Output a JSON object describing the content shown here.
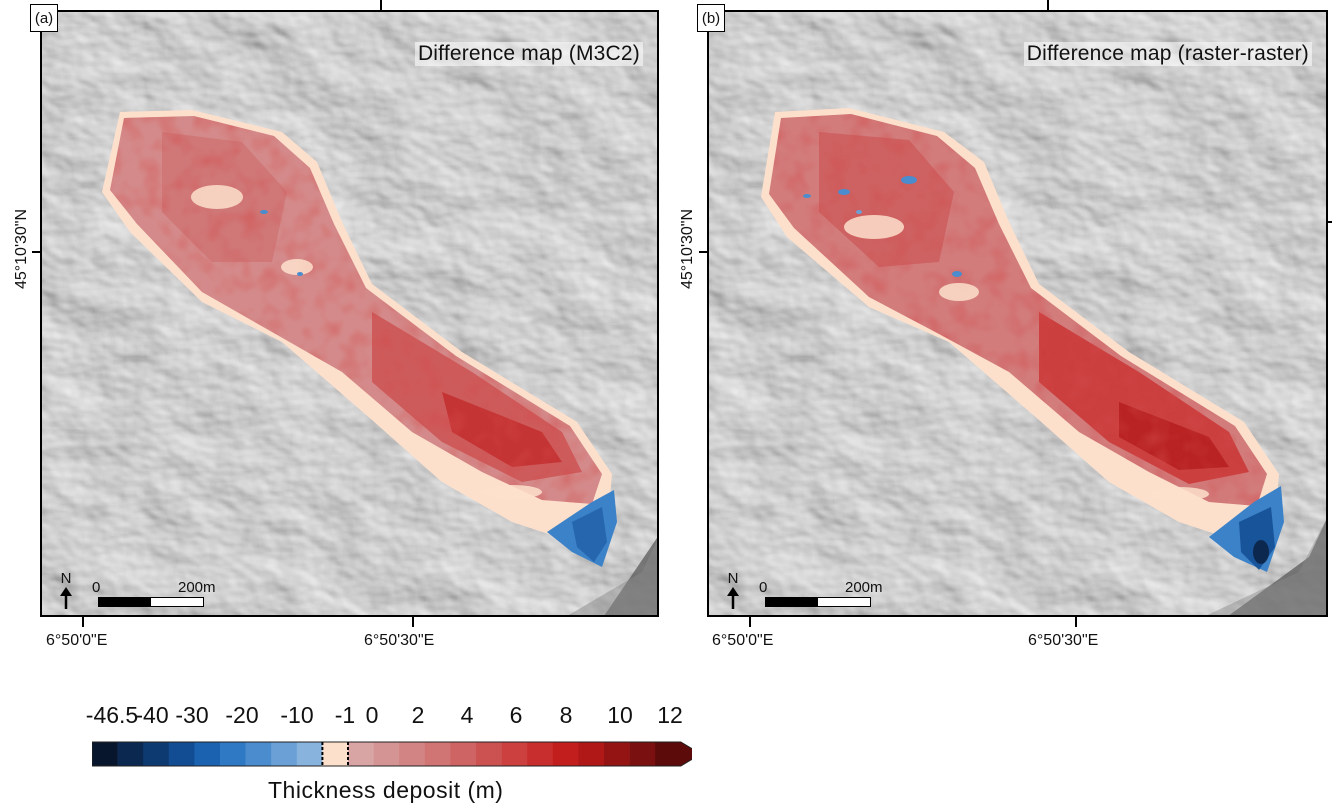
{
  "panels": [
    {
      "letter": "(a)",
      "title": "Difference map (M3C2)",
      "lat_label": "45°10'30\"N",
      "lon_labels": [
        "6°50'0\"E",
        "6°50'30\"E"
      ],
      "north_label": "N",
      "scale_zero": "0",
      "scale_end": "200m"
    },
    {
      "letter": "(b)",
      "title": "Difference map (raster-raster)",
      "lat_label": "45°10'30\"N",
      "lon_labels": [
        "6°50'0\"E",
        "6°50'30\"E"
      ],
      "north_label": "N",
      "scale_zero": "0",
      "scale_end": "200m"
    }
  ],
  "legend": {
    "title": "Thickness deposit (m)",
    "tick_labels": [
      "-46.5",
      "-40",
      "-30",
      "-20",
      "-10",
      "-1",
      "0",
      "2",
      "4",
      "6",
      "8",
      "10",
      "12"
    ],
    "colors": [
      "#08162d",
      "#0b2850",
      "#0e3a72",
      "#124c92",
      "#1b63b0",
      "#2f78c3",
      "#4a8ccd",
      "#6aa0d5",
      "#88b3dc",
      "#fde0cc",
      "#d8a4a4",
      "#d49494",
      "#d28484",
      "#d07474",
      "#ce6464",
      "#cc5252",
      "#cc4040",
      "#c92e2e",
      "#c21e1e",
      "#b01818",
      "#941414",
      "#7a1010",
      "#5c0a0a"
    ]
  },
  "colors": {
    "hillshade": "#dcdcdc",
    "deposit_positive": "#d07474",
    "deposit_negative": "#3c82c8",
    "near_zero": "#fde0cc"
  }
}
